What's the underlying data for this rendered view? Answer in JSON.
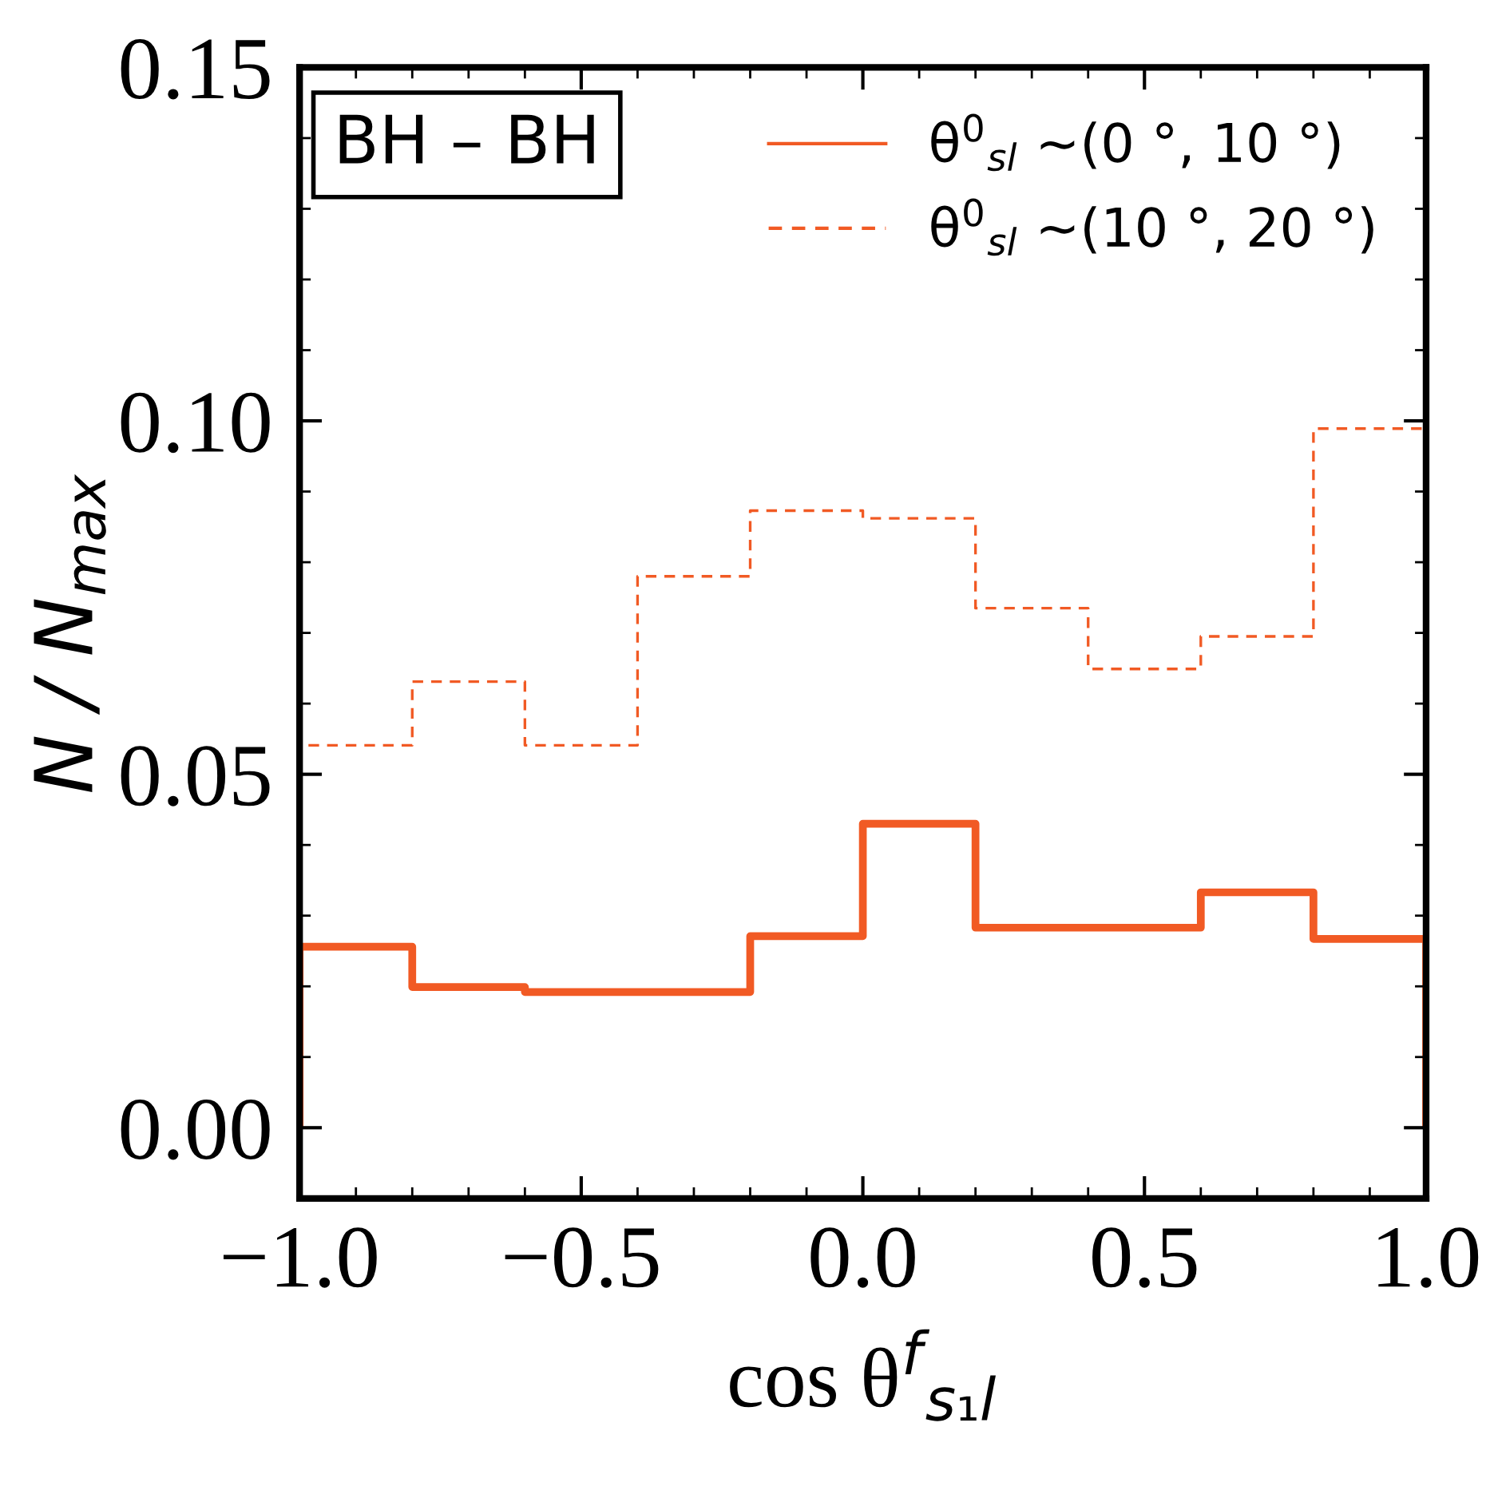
{
  "chart_data": {
    "type": "histogram",
    "xlabel": "cos θ$^{f}$$_{s₁l}$",
    "ylabel": "N / N$_{max}$",
    "annotations": [
      "BH – BH"
    ],
    "bins": [
      -1.0,
      -0.8,
      -0.6,
      -0.4,
      -0.2,
      0.0,
      0.2,
      0.4,
      0.6,
      0.8,
      1.0
    ],
    "series": [
      {
        "name": "θ$^{0}$$_{sl}$ ∼(0 °, 10 °)",
        "color": "#f15a24",
        "line_style": "solid",
        "values": [
          0.0256,
          0.0199,
          0.0192,
          0.0192,
          0.0271,
          0.043,
          0.0283,
          0.0283,
          0.0333,
          0.0267
        ]
      },
      {
        "name": "θ$^{0}$$_{sl}$ ∼(10 °, 20 °)",
        "color": "#f15a24",
        "line_style": "dashed",
        "values": [
          0.0541,
          0.0631,
          0.0541,
          0.078,
          0.0873,
          0.0862,
          0.0735,
          0.0649,
          0.0695,
          0.0989
        ]
      }
    ],
    "xlim": [
      -1.0,
      1.0
    ],
    "ylim": [
      -0.01,
      0.15
    ],
    "xticks": [
      {
        "value": -1.0,
        "label": "−1.0"
      },
      {
        "value": -0.5,
        "label": "−0.5"
      },
      {
        "value": 0.0,
        "label": "0.0"
      },
      {
        "value": 0.5,
        "label": "0.5"
      },
      {
        "value": 1.0,
        "label": "1.0"
      }
    ],
    "yticks": [
      {
        "value": 0.0,
        "label": "0.00"
      },
      {
        "value": 0.05,
        "label": "0.05"
      },
      {
        "value": 0.1,
        "label": "0.10"
      },
      {
        "value": 0.15,
        "label": "0.15"
      }
    ],
    "legend": "top right",
    "grid": false
  }
}
